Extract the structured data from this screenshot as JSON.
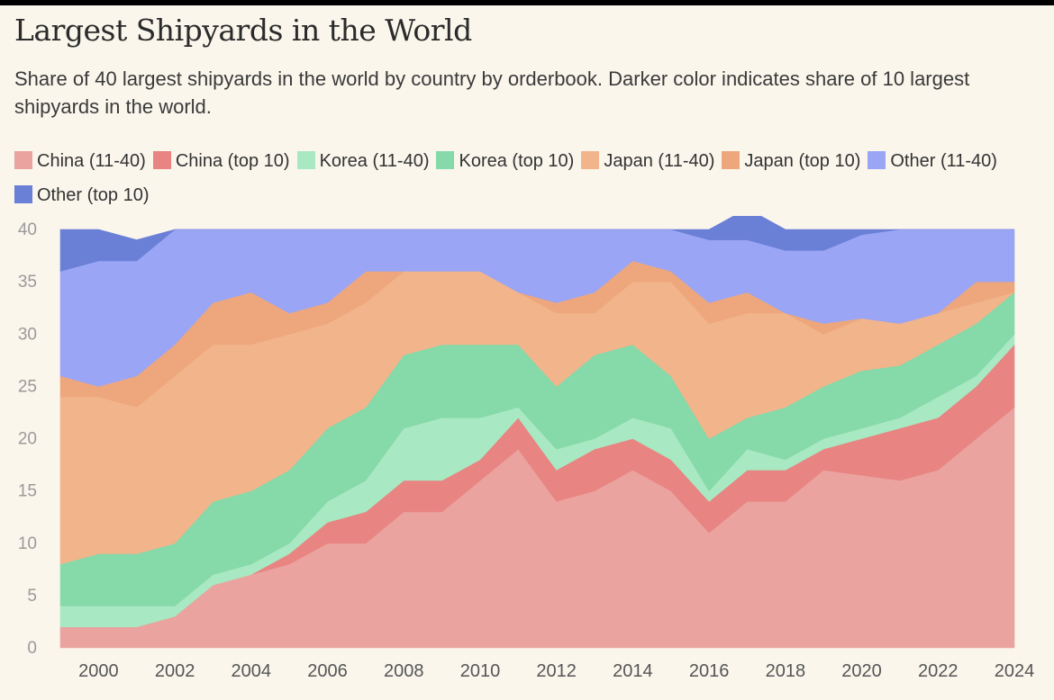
{
  "title": "Largest Shipyards in the World",
  "subtitle": "Share of 40 largest shipyards in the world by country by orderbook. Darker color indicates share of 10 largest shipyards in the world.",
  "chart_data": {
    "type": "area",
    "stacked": true,
    "x": [
      1999,
      2000,
      2001,
      2002,
      2003,
      2004,
      2005,
      2006,
      2007,
      2008,
      2009,
      2010,
      2011,
      2012,
      2013,
      2014,
      2015,
      2016,
      2017,
      2018,
      2019,
      2020,
      2021,
      2022,
      2023,
      2024
    ],
    "xticks": [
      "2000",
      "2002",
      "2004",
      "2006",
      "2008",
      "2010",
      "2012",
      "2014",
      "2016",
      "2018",
      "2020",
      "2022",
      "2024"
    ],
    "yticks": [
      "0",
      "5",
      "10",
      "15",
      "20",
      "25",
      "30",
      "35",
      "40"
    ],
    "ylim": [
      0,
      40
    ],
    "grid": false,
    "legend_position": "top",
    "series": [
      {
        "name": "China (11-40)",
        "color": "#eba3a0",
        "values": [
          2,
          2,
          2,
          3,
          6,
          7,
          8,
          10,
          10,
          13,
          13,
          16,
          19,
          14,
          15,
          17,
          15,
          11,
          14,
          14,
          17,
          16.5,
          16,
          17,
          20,
          23
        ]
      },
      {
        "name": "China (top 10)",
        "color": "#e88481",
        "values": [
          0,
          0,
          0,
          0,
          0,
          0,
          1,
          2,
          3,
          3,
          3,
          2,
          3,
          3,
          4,
          3,
          3,
          3,
          3,
          3,
          2,
          3.5,
          5,
          5,
          5,
          6
        ]
      },
      {
        "name": "Korea (11-40)",
        "color": "#a8e8c2",
        "values": [
          2,
          2,
          2,
          1,
          1,
          1,
          1,
          2,
          3,
          5,
          6,
          4,
          1,
          2,
          1,
          2,
          3,
          1,
          2,
          1,
          1,
          1,
          1,
          2,
          1,
          1
        ]
      },
      {
        "name": "Korea (top 10)",
        "color": "#86d9a8",
        "values": [
          4,
          5,
          5,
          6,
          7,
          7,
          7,
          7,
          7,
          7,
          7,
          7,
          6,
          6,
          8,
          7,
          5,
          5,
          3,
          5,
          5,
          5.5,
          5,
          5,
          5,
          4
        ]
      },
      {
        "name": "Japan (11-40)",
        "color": "#f2b48b",
        "values": [
          16,
          15,
          14,
          16,
          15,
          14,
          13,
          10,
          10,
          8,
          7,
          7,
          5,
          7,
          4,
          6,
          9,
          11,
          10,
          9,
          5,
          5,
          4,
          3,
          2,
          0
        ]
      },
      {
        "name": "Japan (top 10)",
        "color": "#eea77c",
        "values": [
          2,
          1,
          3,
          3,
          4,
          5,
          2,
          2,
          3,
          0,
          0,
          0,
          0,
          1,
          2,
          2,
          1,
          2,
          2,
          0,
          1,
          0,
          0,
          0,
          2,
          1
        ]
      },
      {
        "name": "Other (11-40)",
        "color": "#9aa5f5",
        "values": [
          10,
          12,
          11,
          11,
          7,
          6,
          8,
          7,
          4,
          4,
          4,
          4,
          6,
          7,
          6,
          3,
          4,
          6,
          5,
          6,
          7,
          8,
          9,
          8,
          5,
          5
        ]
      },
      {
        "name": "Other (top 10)",
        "color": "#6a7fd6",
        "values": [
          4,
          3,
          2,
          0,
          0,
          0,
          0,
          0,
          0,
          0,
          0,
          0,
          0,
          0,
          0,
          0,
          0,
          1,
          3,
          2,
          2,
          0.5,
          0,
          0,
          0,
          0
        ]
      }
    ]
  }
}
